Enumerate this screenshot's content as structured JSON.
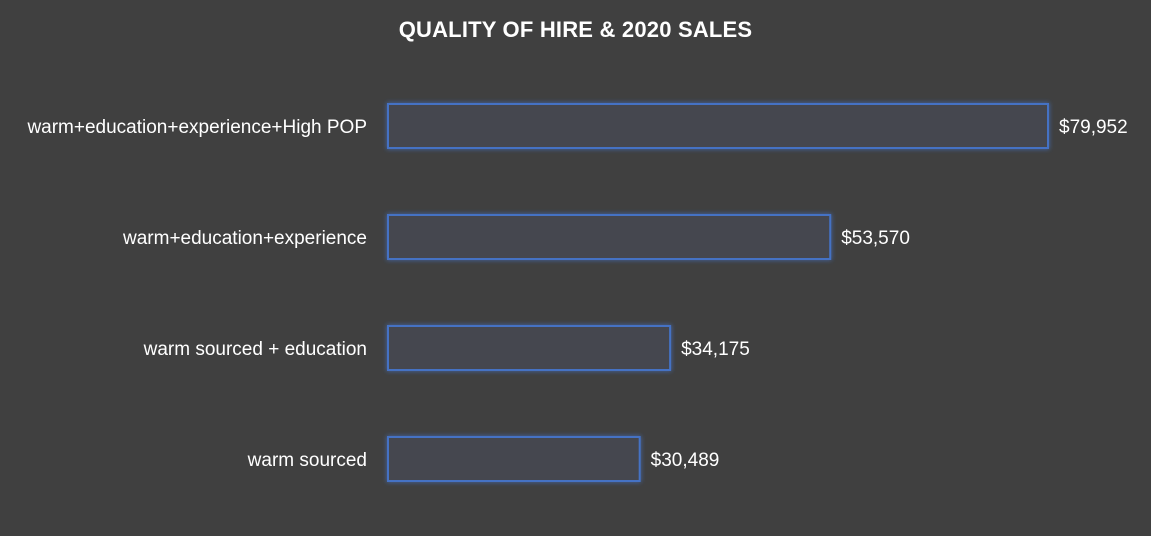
{
  "chart_data": {
    "type": "bar",
    "orientation": "horizontal",
    "title": "QUALITY OF HIRE & 2020 SALES",
    "categories": [
      "warm+education+experience+High POP",
      "warm+education+experience",
      "warm sourced + education",
      "warm sourced"
    ],
    "values": [
      79952,
      53570,
      34175,
      30489
    ],
    "value_labels": [
      "$79,952",
      "$53,570",
      "$34,175",
      "$30,489"
    ],
    "xlim": [
      0,
      79952
    ],
    "grid": false,
    "legend": "none",
    "colors": {
      "background": "#404040",
      "bar_fill": "#444750",
      "bar_stroke": "#4472c4",
      "bar_glow": "#5b8de6",
      "text": "#ffffff"
    }
  }
}
